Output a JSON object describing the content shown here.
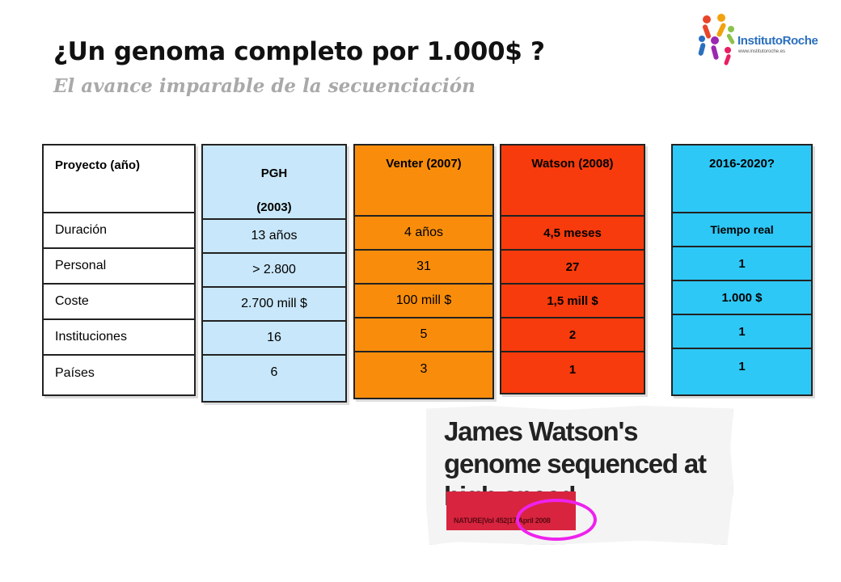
{
  "header": {
    "title": "¿Un genoma completo por 1.000$ ?",
    "subtitle": "El avance imparable de la secuenciación"
  },
  "logo": {
    "name_part1": "Instituto",
    "name_part2": "Roche",
    "url": "www.institutoroche.es"
  },
  "labels": {
    "head": "Proyecto (año)",
    "rows": [
      "Duración",
      "Personal",
      "Coste",
      "Instituciones",
      "Países"
    ]
  },
  "pgh": {
    "head_line1": "PGH",
    "head_line2": "(2003)",
    "rows": [
      "13 años",
      "> 2.800",
      "2.700 mill $",
      "16",
      "6"
    ],
    "color": "#c8e7fa"
  },
  "venter": {
    "head": "Venter (2007)",
    "rows": [
      "4 años",
      "31",
      "100 mill $",
      "5",
      "3"
    ],
    "color": "#f98d0b"
  },
  "watson": {
    "head": "Watson (2008)",
    "rows": [
      "4,5  meses",
      "27",
      "1,5 mill $",
      "2",
      "1"
    ],
    "color": "#f73b0c"
  },
  "future": {
    "head": "2016-2020?",
    "rows": [
      "Tiempo real",
      "1",
      "1.000 $",
      "1",
      "1"
    ],
    "color": "#2ec8f6"
  },
  "clipping": {
    "headline": "James Watson's genome sequenced at high speed",
    "reference": "NATURE|Vol 452|17 April 2008",
    "highlight_color": "#ee22ee"
  }
}
